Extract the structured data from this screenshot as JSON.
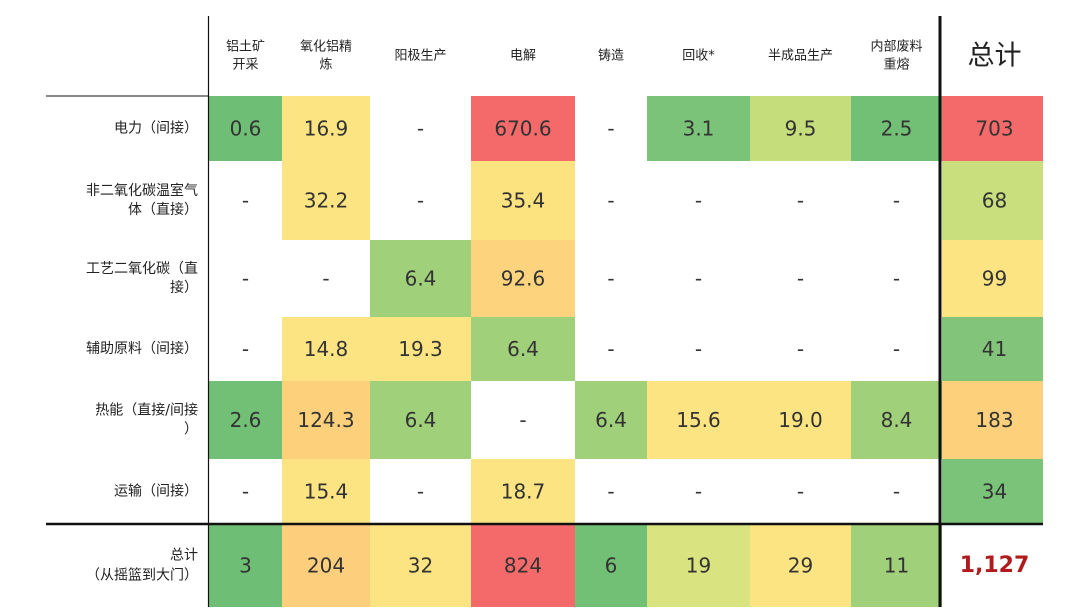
{
  "chart_data": {
    "type": "heatmap",
    "title": "",
    "columns": [
      {
        "label": [
          "铝土矿",
          "开采"
        ]
      },
      {
        "label": [
          "氧化铝精",
          "炼"
        ]
      },
      {
        "label": [
          "阳极生产"
        ]
      },
      {
        "label": [
          "电解"
        ]
      },
      {
        "label": [
          "铸造"
        ]
      },
      {
        "label": [
          "回收*"
        ]
      },
      {
        "label": [
          "半成品生产"
        ]
      },
      {
        "label": [
          "内部废料",
          "重熔"
        ]
      }
    ],
    "total_column_label": "总计",
    "rows": [
      {
        "label": [
          "电力（间接）"
        ],
        "values": [
          "0.6",
          "16.9",
          "-",
          "670.6",
          "-",
          "3.1",
          "9.5",
          "2.5"
        ],
        "total": "703",
        "colors": [
          "#6fbe76",
          "#fde482",
          null,
          "#f46a6a",
          null,
          "#7cc37a",
          "#c6dd7c",
          "#72bf76",
          "#f46a6a"
        ]
      },
      {
        "label": [
          "非二氧化碳温室气",
          "体（直接）"
        ],
        "values": [
          "-",
          "32.2",
          "-",
          "35.4",
          "-",
          "-",
          "-",
          "-"
        ],
        "total": "68",
        "colors": [
          null,
          "#fde482",
          null,
          "#fde380",
          null,
          null,
          null,
          null,
          "#c9df7d"
        ]
      },
      {
        "label": [
          "工艺二氧化碳（直",
          "接）"
        ],
        "values": [
          "-",
          "-",
          "6.4",
          "92.6",
          "-",
          "-",
          "-",
          "-"
        ],
        "total": "99",
        "colors": [
          null,
          null,
          "#a1d07a",
          "#fdd37d",
          null,
          null,
          null,
          null,
          "#fde482"
        ]
      },
      {
        "label": [
          "辅助原料（间接）"
        ],
        "values": [
          "-",
          "14.8",
          "19.3",
          "6.4",
          "-",
          "-",
          "-",
          "-"
        ],
        "total": "41",
        "colors": [
          null,
          "#fde482",
          "#fde482",
          "#a1d07a",
          null,
          null,
          null,
          null,
          "#82c47a"
        ]
      },
      {
        "label": [
          "热能（直接/间接",
          "）"
        ],
        "values": [
          "2.6",
          "124.3",
          "6.4",
          "-",
          "6.4",
          "15.6",
          "19.0",
          "8.4"
        ],
        "total": "183",
        "colors": [
          "#72bf76",
          "#fdd07c",
          "#a1d07a",
          null,
          "#a1d07a",
          "#fde482",
          "#fde482",
          "#a1d07a",
          "#fdd07c"
        ]
      },
      {
        "label": [
          "运输（间接）"
        ],
        "values": [
          "-",
          "15.4",
          "-",
          "18.7",
          "-",
          "-",
          "-",
          "-"
        ],
        "total": "34",
        "colors": [
          null,
          "#fde482",
          null,
          "#fde482",
          null,
          null,
          null,
          null,
          "#7cc37a"
        ]
      }
    ],
    "total_row": {
      "label": [
        "总计",
        "（从摇篮到大门）"
      ],
      "values": [
        "3",
        "204",
        "32",
        "824",
        "6",
        "19",
        "29",
        "11"
      ],
      "grand_total": "1,127",
      "colors": [
        "#6fbe76",
        "#fdcf7c",
        "#fde482",
        "#f46a6a",
        "#72bf76",
        "#d9e37f",
        "#fde482",
        "#a1d07a"
      ]
    }
  }
}
